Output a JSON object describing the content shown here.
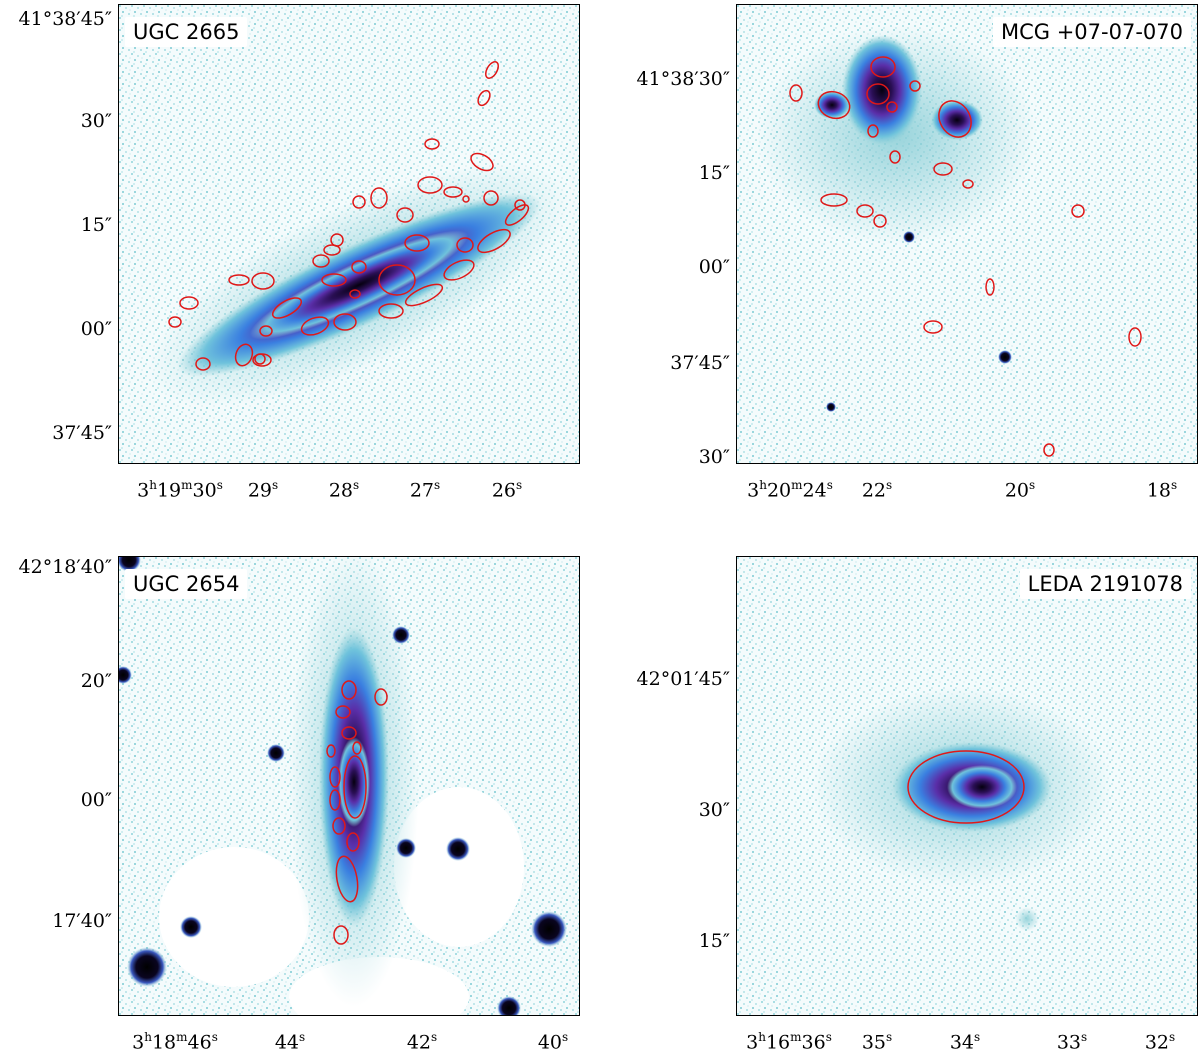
{
  "panels": [
    {
      "name": "UGC 2665",
      "yticks": [
        "41°38′45″",
        "30″",
        "15″",
        "00″",
        "37′45″"
      ],
      "xticks": [
        "3h19m30s",
        "29s",
        "28s",
        "27s",
        "26s"
      ]
    },
    {
      "name": "MCG +07-07-070",
      "yticks": [
        "41°38′30″",
        "15″",
        "00″",
        "37′45″",
        "30″"
      ],
      "xticks": [
        "3h20m24s",
        "22s",
        "20s",
        "18s"
      ]
    },
    {
      "name": "UGC 2654",
      "yticks": [
        "42°18′40″",
        "20″",
        "00″",
        "17′40″"
      ],
      "xticks": [
        "3h18m46s",
        "44s",
        "42s",
        "40s"
      ]
    },
    {
      "name": "LEDA 2191078",
      "yticks": [
        "42°01′45″",
        "30″",
        "15″"
      ],
      "xticks": [
        "3h16m36s",
        "35s",
        "34s",
        "33s",
        "32s"
      ]
    }
  ],
  "colors": {
    "background_noise": "#8fd0d8",
    "galaxy_core": "#05000f",
    "galaxy_mid": "#5a2ea8",
    "galaxy_outer": "#3a7fe0",
    "aperture": "#e01818"
  }
}
